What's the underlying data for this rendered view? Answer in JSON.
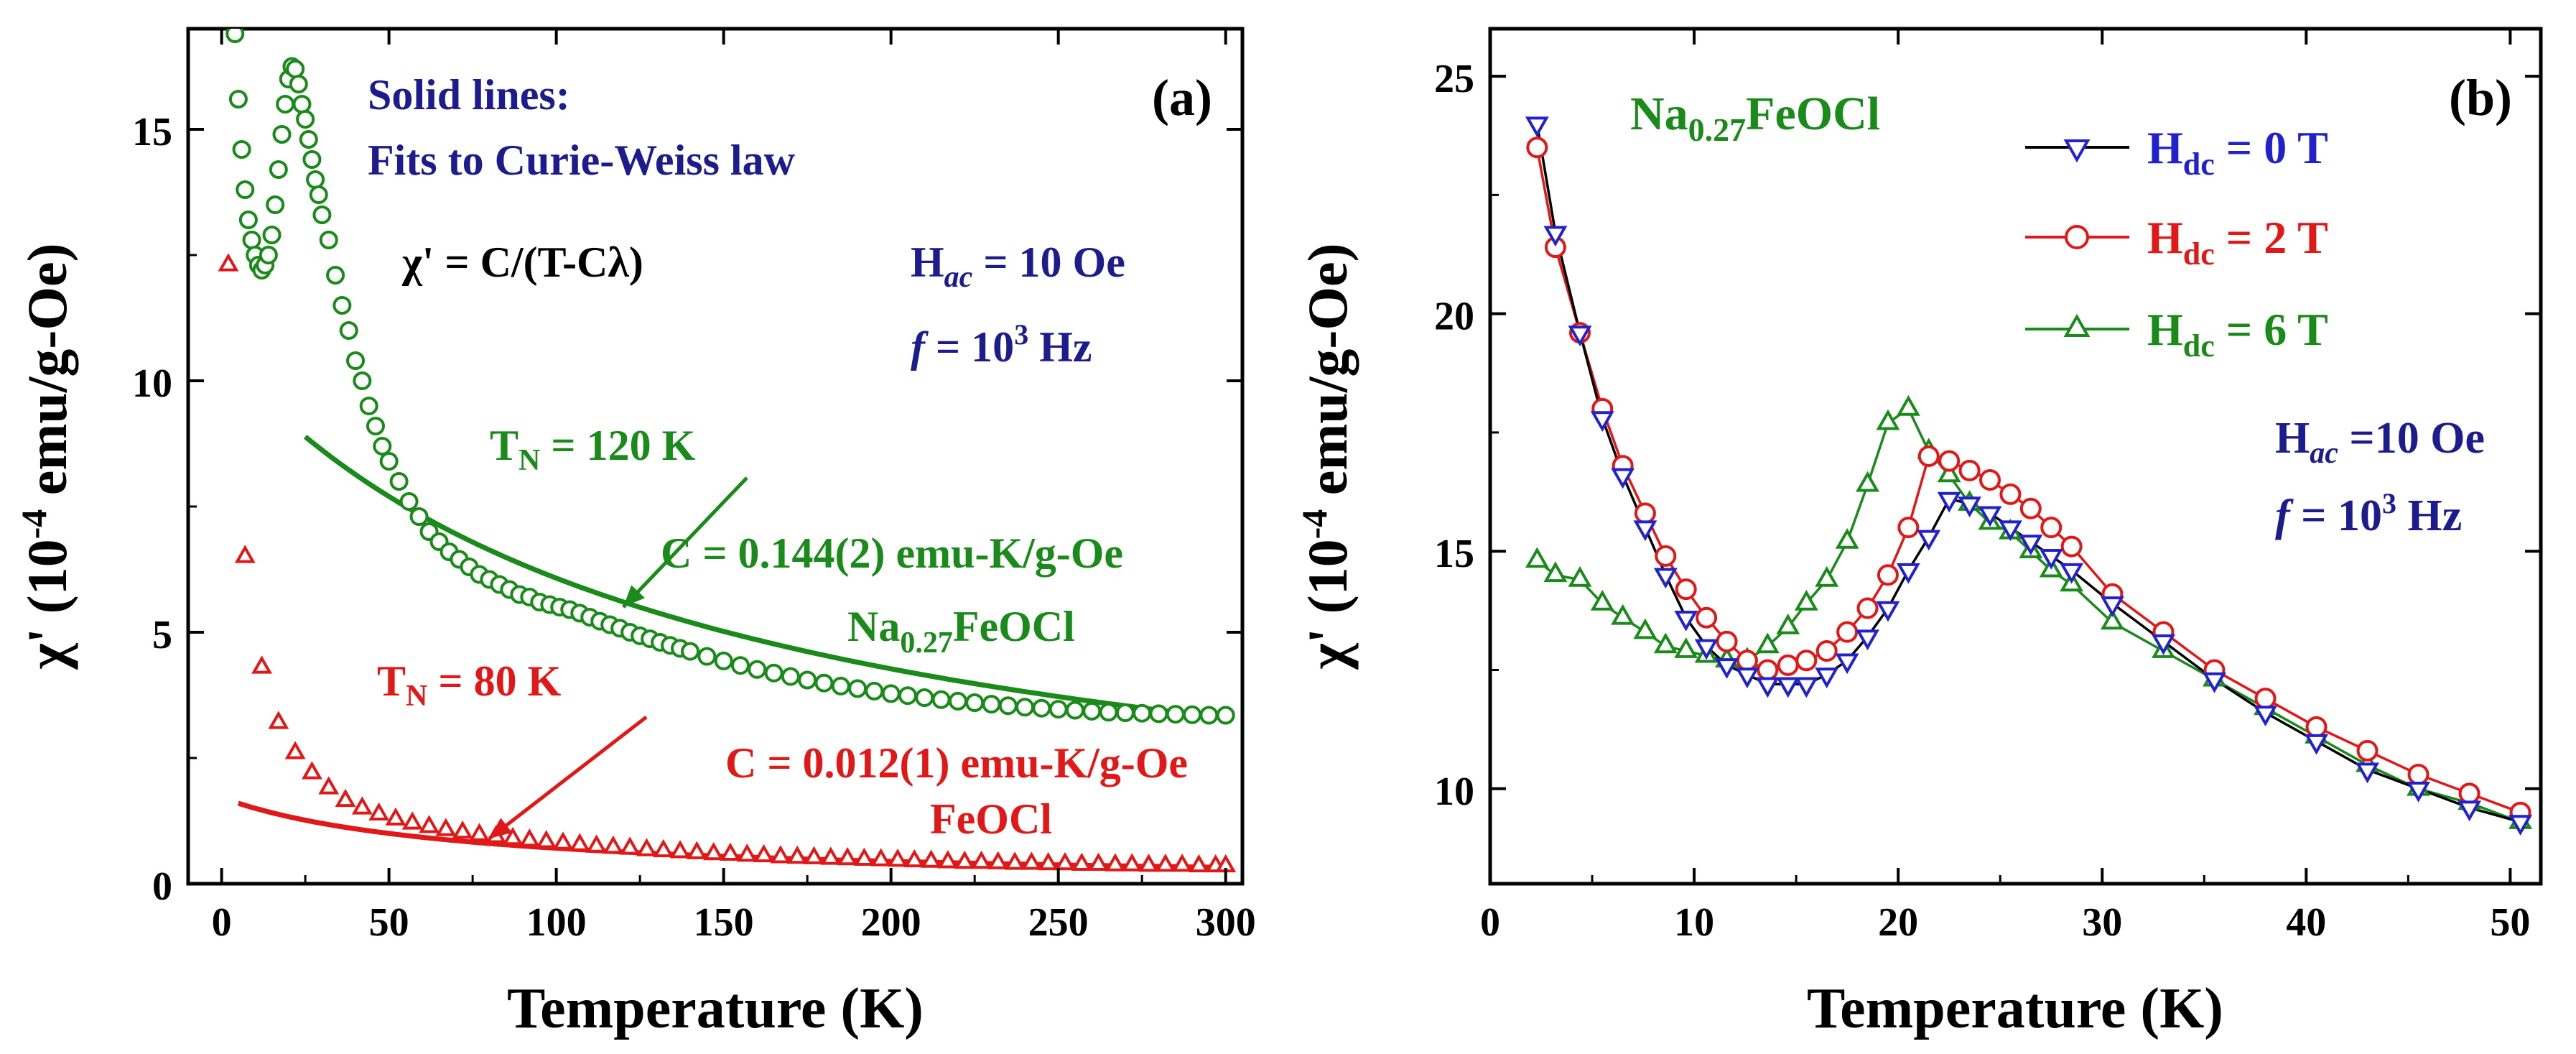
{
  "chart_data": [
    {
      "panel_label": "(a)",
      "type": "scatter",
      "xlabel": "Temperature (K)",
      "ylabel": "χ' (10⁻⁴ emu/g-Oe)",
      "xlim": [
        -10,
        305
      ],
      "ylim": [
        0,
        17
      ],
      "xticks": [
        0,
        50,
        100,
        150,
        200,
        250,
        300
      ],
      "yticks": [
        0,
        5,
        10,
        15
      ],
      "grid": false,
      "colors": {
        "green": "#1a8a1a",
        "red": "#e01818",
        "navy": "#1c1c8c"
      },
      "notes": [
        {
          "id": "solid-lines",
          "lines": [
            "Solid lines:",
            "Fits to Curie-Weiss law"
          ],
          "color": "#1c1c8c"
        },
        {
          "id": "formula",
          "text": "χ' = C/(T-Cλ)",
          "color": "#000000"
        },
        {
          "id": "hac",
          "text": "H",
          "sub": "ac",
          "after": " = 10 Oe",
          "color": "#1c1c8c"
        },
        {
          "id": "freq",
          "text": "f",
          "mid": " = 10",
          "sup": "3",
          "after": " Hz",
          "color": "#1c1c8c"
        }
      ],
      "annotations": [
        {
          "id": "tn-na",
          "text": "T",
          "sub": "N",
          "after": " = 120 K",
          "color": "#1a8a1a",
          "arrow_to": [
            120,
            5.5
          ]
        },
        {
          "id": "c-na",
          "text": "C = 0.144(2) emu-K/g-Oe",
          "color": "#1a8a1a"
        },
        {
          "id": "name-na",
          "text": "Na",
          "sub": "0.27",
          "after": "FeOCl",
          "color": "#1a8a1a"
        },
        {
          "id": "tn-fe",
          "text": "T",
          "sub": "N",
          "after": " = 80 K",
          "color": "#e01818",
          "arrow_to": [
            80,
            0.9
          ]
        },
        {
          "id": "c-fe",
          "text": "C = 0.012(1) emu-K/g-Oe",
          "color": "#e01818"
        },
        {
          "id": "name-fe",
          "text": "FeOCl",
          "color": "#e01818"
        }
      ],
      "series": [
        {
          "marker": "circle",
          "color": "#1a8a1a",
          "x": [
            2,
            4,
            5,
            6,
            7,
            8,
            9,
            10,
            11,
            12,
            13,
            14,
            15,
            16,
            17,
            18,
            19,
            20,
            21,
            22,
            23,
            24,
            25,
            26,
            27,
            28,
            29,
            30,
            32,
            34,
            36,
            38,
            40,
            42,
            44,
            46,
            48,
            50,
            53,
            56,
            59,
            62,
            65,
            68,
            71,
            74,
            77,
            80,
            83,
            86,
            89,
            92,
            95,
            98,
            101,
            104,
            107,
            110,
            113,
            116,
            119,
            122,
            125,
            128,
            131,
            134,
            137,
            140,
            145,
            150,
            155,
            160,
            165,
            170,
            175,
            180,
            185,
            190,
            195,
            200,
            205,
            210,
            215,
            220,
            225,
            230,
            235,
            240,
            245,
            250,
            255,
            260,
            265,
            270,
            275,
            280,
            285,
            290,
            295,
            300
          ],
          "values": [
            17.6,
            16.9,
            15.6,
            14.6,
            13.8,
            13.2,
            12.8,
            12.5,
            12.3,
            12.2,
            12.3,
            12.5,
            12.9,
            13.5,
            14.2,
            14.9,
            15.5,
            16.0,
            16.25,
            16.2,
            15.9,
            15.5,
            15.2,
            14.8,
            14.4,
            14.0,
            13.7,
            13.3,
            12.8,
            12.1,
            11.5,
            11.0,
            10.4,
            10.0,
            9.5,
            9.1,
            8.7,
            8.4,
            8.0,
            7.6,
            7.3,
            7.0,
            6.8,
            6.6,
            6.45,
            6.3,
            6.15,
            6.05,
            5.95,
            5.85,
            5.75,
            5.7,
            5.6,
            5.55,
            5.5,
            5.45,
            5.38,
            5.3,
            5.22,
            5.15,
            5.08,
            5.0,
            4.93,
            4.87,
            4.8,
            4.74,
            4.68,
            4.62,
            4.52,
            4.43,
            4.34,
            4.26,
            4.19,
            4.12,
            4.05,
            3.99,
            3.93,
            3.88,
            3.83,
            3.78,
            3.74,
            3.7,
            3.66,
            3.63,
            3.6,
            3.57,
            3.54,
            3.51,
            3.49,
            3.47,
            3.45,
            3.43,
            3.41,
            3.4,
            3.39,
            3.38,
            3.37,
            3.36,
            3.35,
            3.35
          ]
        },
        {
          "marker": "triangle",
          "color": "#e01818",
          "x": [
            2,
            7,
            12,
            17,
            22,
            27,
            32,
            37,
            42,
            47,
            52,
            57,
            62,
            67,
            72,
            77,
            82,
            87,
            92,
            97,
            102,
            107,
            112,
            117,
            122,
            127,
            132,
            137,
            142,
            147,
            152,
            157,
            162,
            167,
            172,
            177,
            182,
            187,
            192,
            197,
            202,
            207,
            212,
            217,
            222,
            227,
            232,
            237,
            242,
            247,
            252,
            257,
            262,
            267,
            272,
            277,
            282,
            287,
            292,
            297,
            300
          ],
          "values": [
            12.3,
            6.5,
            4.3,
            3.2,
            2.6,
            2.2,
            1.9,
            1.65,
            1.5,
            1.38,
            1.28,
            1.2,
            1.13,
            1.07,
            1.02,
            0.97,
            0.93,
            0.89,
            0.86,
            0.83,
            0.8,
            0.77,
            0.74,
            0.72,
            0.7,
            0.67,
            0.65,
            0.63,
            0.61,
            0.59,
            0.58,
            0.56,
            0.55,
            0.53,
            0.52,
            0.51,
            0.5,
            0.49,
            0.48,
            0.47,
            0.46,
            0.45,
            0.44,
            0.43,
            0.42,
            0.42,
            0.41,
            0.4,
            0.4,
            0.39,
            0.39,
            0.38,
            0.38,
            0.37,
            0.37,
            0.36,
            0.36,
            0.36,
            0.35,
            0.35,
            0.35
          ]
        }
      ],
      "fits": [
        {
          "color": "#1a8a1a",
          "C": 0.144,
          "Clambda": -137,
          "x_range": [
            25,
            300
          ]
        },
        {
          "color": "#e01818",
          "C": 0.012,
          "Clambda": -70,
          "x_range": [
            5,
            300
          ]
        }
      ]
    },
    {
      "panel_label": "(b)",
      "type": "line",
      "xlabel": "Temperature (K)",
      "ylabel": "χ' (10⁻⁴ emu/g-Oe)",
      "xlim": [
        0,
        51.5
      ],
      "ylim": [
        8,
        26
      ],
      "xticks": [
        0,
        10,
        20,
        30,
        40,
        50
      ],
      "yticks": [
        10,
        15,
        20,
        25
      ],
      "grid": false,
      "legend_position": "top-right",
      "title": {
        "text": "Na",
        "sub": "0.27",
        "after": "FeOCl",
        "color": "#1a8a1a"
      },
      "notes": [
        {
          "id": "hac",
          "text": "H",
          "sub": "ac",
          "after": " =10 Oe",
          "color": "#1c1c8c"
        },
        {
          "id": "freq",
          "text": "f",
          "mid": " = 10",
          "sup": "3",
          "after": " Hz",
          "color": "#1c1c8c"
        }
      ],
      "series": [
        {
          "label_main": "H",
          "label_sub": "dc",
          "label_after": " = 0 T",
          "marker": "triangle-down",
          "color": "#2222cc",
          "line_color": "#000000",
          "label_color": "#2222cc",
          "x": [
            2.3,
            3.2,
            4.4,
            5.5,
            6.5,
            7.6,
            8.6,
            9.6,
            10.6,
            11.6,
            12.6,
            13.6,
            14.6,
            15.5,
            16.5,
            17.5,
            18.5,
            19.5,
            20.5,
            21.5,
            22.5,
            23.5,
            24.5,
            25.5,
            26.5,
            27.5,
            28.5,
            30.5,
            33,
            35.5,
            38,
            40.5,
            43,
            45.5,
            48,
            50.5
          ],
          "values": [
            24.0,
            21.7,
            19.6,
            17.8,
            16.6,
            15.5,
            14.5,
            13.6,
            13.0,
            12.6,
            12.4,
            12.2,
            12.2,
            12.2,
            12.4,
            12.7,
            13.2,
            13.8,
            14.6,
            15.3,
            16.1,
            16.0,
            15.8,
            15.5,
            15.2,
            14.9,
            14.6,
            13.9,
            13.1,
            12.3,
            11.6,
            11.0,
            10.4,
            10.0,
            9.6,
            9.3
          ]
        },
        {
          "label_main": "H",
          "label_sub": "dc",
          "label_after": " = 2 T",
          "marker": "circle",
          "color": "#e01818",
          "line_color": "#e01818",
          "label_color": "#e01818",
          "x": [
            2.3,
            3.2,
            4.4,
            5.5,
            6.5,
            7.6,
            8.6,
            9.6,
            10.6,
            11.6,
            12.6,
            13.6,
            14.6,
            15.5,
            16.5,
            17.5,
            18.5,
            19.5,
            20.5,
            21.5,
            22.5,
            23.5,
            24.5,
            25.5,
            26.5,
            27.5,
            28.5,
            30.5,
            33,
            35.5,
            38,
            40.5,
            43,
            45.5,
            48,
            50.5
          ],
          "values": [
            23.5,
            21.4,
            19.6,
            18.0,
            16.8,
            15.8,
            14.9,
            14.2,
            13.6,
            13.1,
            12.7,
            12.5,
            12.6,
            12.7,
            12.9,
            13.3,
            13.8,
            14.5,
            15.5,
            17.0,
            16.9,
            16.7,
            16.5,
            16.2,
            15.9,
            15.5,
            15.1,
            14.1,
            13.3,
            12.5,
            11.9,
            11.3,
            10.8,
            10.3,
            9.9,
            9.5
          ]
        },
        {
          "label_main": "H",
          "label_sub": "dc",
          "label_after": " = 6 T",
          "marker": "triangle",
          "color": "#1a8a1a",
          "line_color": "#1a8a1a",
          "label_color": "#1a8a1a",
          "x": [
            2.3,
            3.2,
            4.4,
            5.5,
            6.5,
            7.6,
            8.6,
            9.6,
            10.6,
            11.6,
            12.6,
            13.6,
            14.6,
            15.5,
            16.5,
            17.5,
            18.5,
            19.5,
            20.5,
            21.5,
            22.5,
            23.5,
            24.5,
            25.5,
            26.5,
            27.5,
            28.5,
            30.5,
            33,
            35.5,
            38,
            40.5,
            43,
            45.5,
            48,
            50.5
          ],
          "values": [
            14.8,
            14.5,
            14.4,
            13.9,
            13.6,
            13.3,
            13.0,
            12.9,
            12.8,
            12.7,
            12.7,
            13.0,
            13.4,
            13.9,
            14.4,
            15.2,
            16.4,
            17.7,
            18.0,
            17.1,
            16.6,
            16.0,
            15.6,
            15.4,
            15.0,
            14.6,
            14.3,
            13.5,
            12.9,
            12.3,
            11.7,
            11.1,
            10.5,
            10.0,
            9.7,
            9.3
          ]
        }
      ]
    }
  ]
}
